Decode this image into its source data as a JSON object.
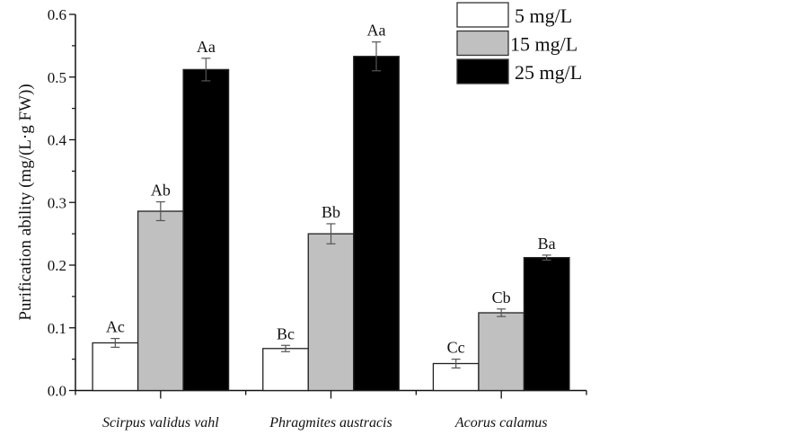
{
  "chart_data": {
    "type": "bar",
    "title": "",
    "xlabel": "",
    "ylabel": "Purification ability (mg/(L·g FW))",
    "ylim": [
      0,
      0.6
    ],
    "yticks": [
      "0.0",
      "0.1",
      "0.2",
      "0.3",
      "0.4",
      "0.5",
      "0.6"
    ],
    "categories": [
      "Scirpus validus vahl",
      "Phragmites austracis",
      "Acorus calamus"
    ],
    "legend_position": "top-right",
    "series": [
      {
        "name": "5  mg/L",
        "color": "#ffffff",
        "values": [
          0.076,
          0.067,
          0.043
        ],
        "errors": [
          0.007,
          0.005,
          0.007
        ],
        "labels": [
          "Ac",
          "Bc",
          "Cc"
        ]
      },
      {
        "name": "15 mg/L",
        "color": "#c0c0c0",
        "values": [
          0.286,
          0.25,
          0.124
        ],
        "errors": [
          0.015,
          0.016,
          0.006
        ],
        "labels": [
          "Ab",
          "Bb",
          "Cb"
        ]
      },
      {
        "name": "25 mg/L",
        "color": "#000000",
        "values": [
          0.512,
          0.533,
          0.212
        ],
        "errors": [
          0.018,
          0.023,
          0.004
        ],
        "labels": [
          "Aa",
          "Aa",
          "Ba"
        ]
      }
    ]
  }
}
